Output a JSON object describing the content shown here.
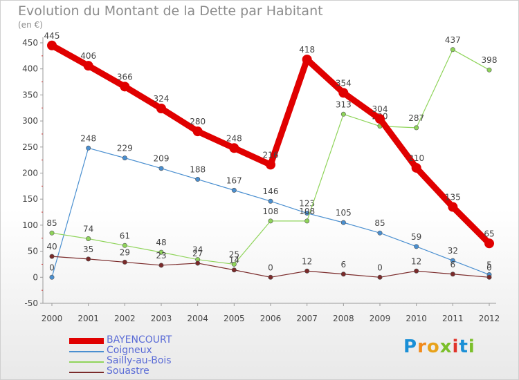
{
  "header": {
    "title": "Evolution du Montant de la Dette par Habitant",
    "unit": "(en €)"
  },
  "logo": {
    "letters": [
      "P",
      "r",
      "o",
      "x",
      "i",
      "t",
      "i"
    ],
    "colors": [
      "#1a8fd6",
      "#f28a1a",
      "#e8a21a",
      "#7bbf2a",
      "#e0332a",
      "#1a8fd6",
      "#7bbf2a"
    ]
  },
  "chart_data": {
    "type": "line",
    "title": "Evolution du Montant de la Dette par Habitant",
    "ylabel": "(en €)",
    "xlabel": "",
    "ylim": [
      -50,
      450
    ],
    "yticks": [
      -50,
      0,
      50,
      100,
      150,
      200,
      250,
      300,
      350,
      400,
      450
    ],
    "x": [
      "2000",
      "2001",
      "2002",
      "2003",
      "2004",
      "2005",
      "2006",
      "2007",
      "2008",
      "2009",
      "2010",
      "2011",
      "2012"
    ],
    "grid": false,
    "legend": "bottom-left",
    "series": [
      {
        "name": "Coigneux",
        "color": "#4a8fd0",
        "values": [
          0,
          248,
          229,
          209,
          188,
          167,
          146,
          123,
          105,
          85,
          59,
          32,
          5
        ]
      },
      {
        "name": "Sailly-au-Bois",
        "color": "#8fd45a",
        "values": [
          85,
          74,
          61,
          48,
          34,
          25,
          108,
          108,
          313,
          290,
          287,
          437,
          398
        ]
      },
      {
        "name": "Souastre",
        "color": "#7a2a2a",
        "values": [
          40,
          35,
          29,
          23,
          27,
          14,
          0,
          12,
          6,
          0,
          12,
          6,
          0
        ]
      },
      {
        "name": "BAYENCOURT",
        "color": "#e00000",
        "values": [
          445,
          406,
          366,
          324,
          280,
          248,
          216,
          418,
          354,
          304,
          210,
          135,
          65
        ]
      }
    ]
  }
}
